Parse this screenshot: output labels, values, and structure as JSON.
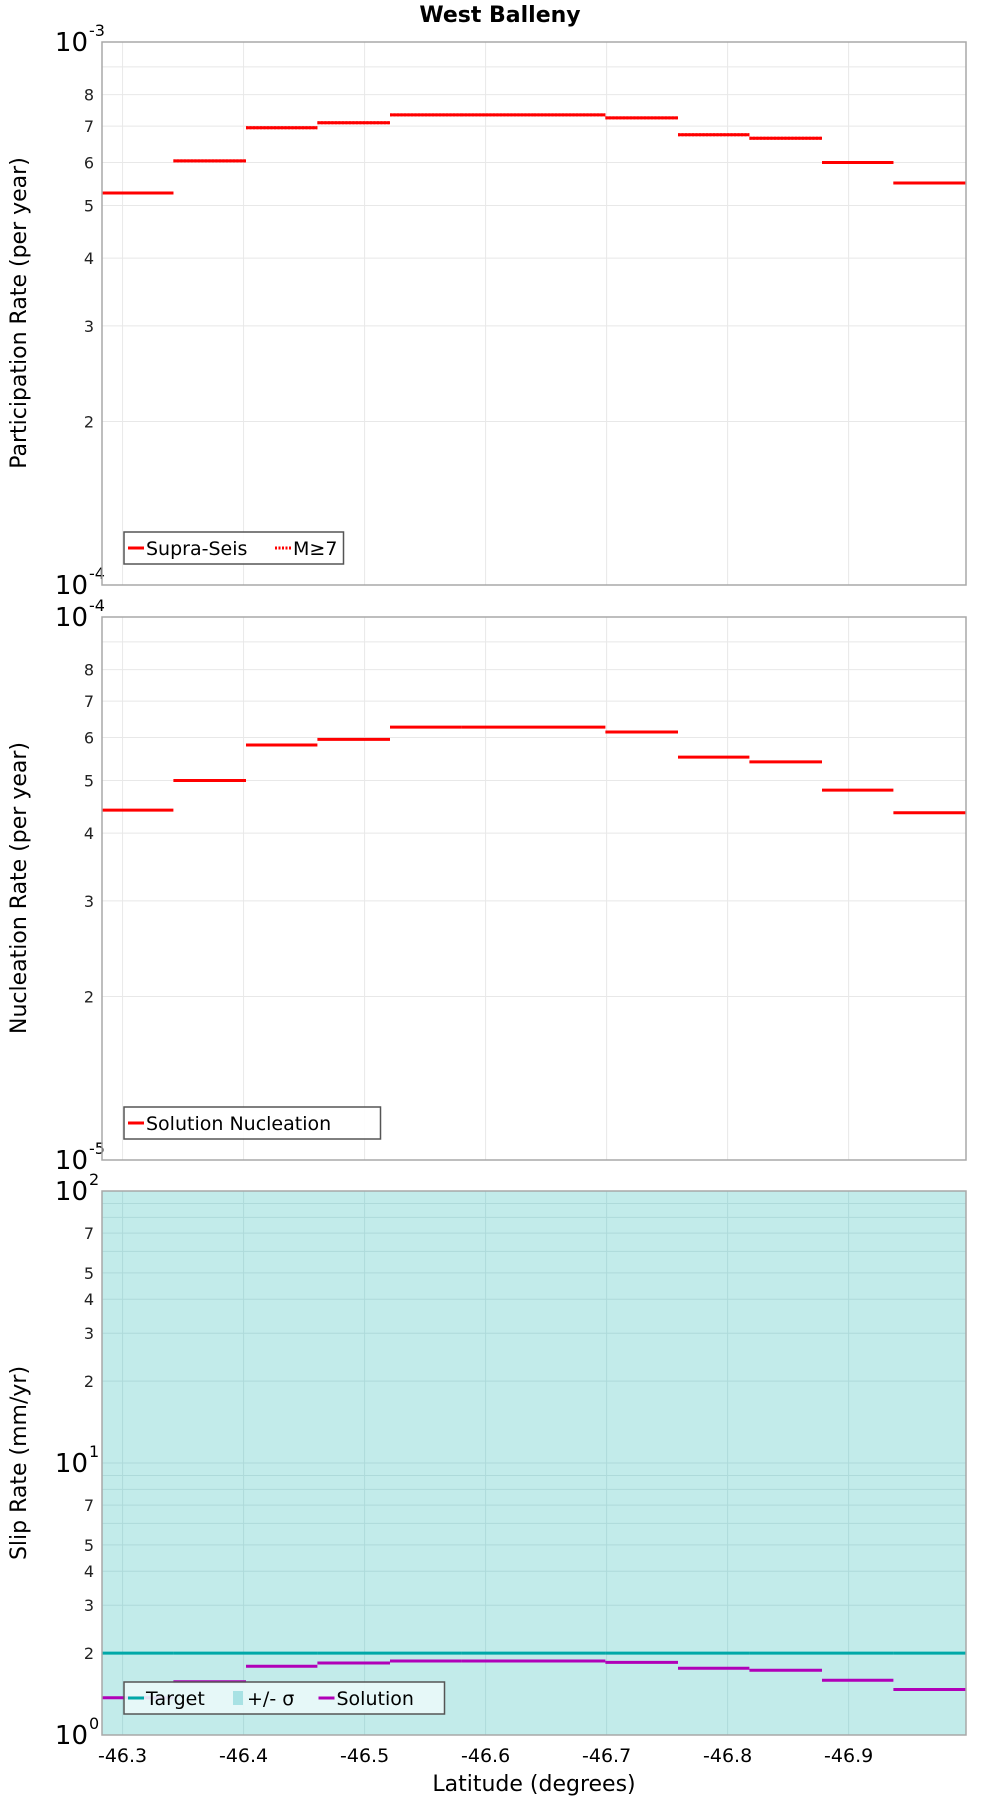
{
  "title": "West Balleny",
  "colors": {
    "solution_red": "#ff0000",
    "target_teal": "#00a8a8",
    "sigma_fill": "#c2ebea",
    "solution_purple": "#b000b8",
    "grid": "#e8e8e8",
    "frame": "#a8a8a8",
    "legend_border": "#555555"
  },
  "chart_data": [
    {
      "type": "line",
      "style": "step",
      "panel": "participation",
      "ylabel": "Participation Rate (per year)",
      "yscale": "log",
      "ylim": [
        0.0001,
        0.001
      ],
      "ytick_labels": [
        "10^-4",
        "2",
        "3",
        "4",
        "5",
        "6",
        "7",
        "8",
        "10^-3"
      ],
      "xlim": [
        -46.283,
        -46.997
      ],
      "grid": true,
      "legend_position": "lower-left",
      "bin_edges": [
        -46.283,
        -46.342,
        -46.402,
        -46.461,
        -46.521,
        -46.58,
        -46.64,
        -46.699,
        -46.759,
        -46.818,
        -46.878,
        -46.937,
        -46.997
      ],
      "series": [
        {
          "name": "Supra-Seis",
          "style": "solid",
          "values": [
            0.000527,
            0.000604,
            0.000695,
            0.00071,
            0.000734,
            0.000734,
            0.000734,
            0.000725,
            0.000675,
            0.000665,
            0.0006,
            0.00055
          ]
        },
        {
          "name": "M≥7",
          "style": "dotted",
          "values": [
            0.000527,
            0.000604,
            0.000695,
            0.00071,
            0.000734,
            0.000734,
            0.000734,
            0.000725,
            0.000675,
            0.000665,
            0.0006,
            0.00055
          ]
        }
      ]
    },
    {
      "type": "line",
      "style": "step",
      "panel": "nucleation",
      "ylabel": "Nucleation Rate (per year)",
      "yscale": "log",
      "ylim": [
        1e-05,
        0.0001
      ],
      "ytick_labels": [
        "10^-5",
        "2",
        "3",
        "4",
        "5",
        "6",
        "7",
        "8",
        "10^-4"
      ],
      "xlim": [
        -46.283,
        -46.997
      ],
      "grid": true,
      "legend_position": "lower-left",
      "bin_edges": [
        -46.283,
        -46.342,
        -46.402,
        -46.461,
        -46.521,
        -46.58,
        -46.64,
        -46.699,
        -46.759,
        -46.818,
        -46.878,
        -46.937,
        -46.997
      ],
      "series": [
        {
          "name": "Solution Nucleation",
          "style": "solid",
          "values": [
            4.41e-05,
            5e-05,
            5.81e-05,
            5.95e-05,
            6.27e-05,
            6.27e-05,
            6.27e-05,
            6.14e-05,
            5.52e-05,
            5.41e-05,
            4.8e-05,
            4.36e-05
          ]
        }
      ]
    },
    {
      "type": "line",
      "style": "step",
      "panel": "slip",
      "ylabel": "Slip Rate (mm/yr)",
      "xlabel": "Latitude (degrees)",
      "yscale": "log",
      "ylim": [
        1,
        100
      ],
      "ytick_labels": [
        "10^0",
        "2",
        "3",
        "4",
        "5",
        "7",
        "10^1",
        "2",
        "3",
        "4",
        "5",
        "7",
        "10^2"
      ],
      "xlim": [
        -46.283,
        -46.997
      ],
      "xticks": [
        -46.3,
        -46.4,
        -46.5,
        -46.6,
        -46.7,
        -46.8,
        -46.9
      ],
      "xtick_labels": [
        "-46.3",
        "-46.4",
        "-46.5",
        "-46.6",
        "-46.7",
        "-46.8",
        "-46.9"
      ],
      "grid": true,
      "legend_position": "lower-left",
      "bin_edges": [
        -46.283,
        -46.342,
        -46.402,
        -46.461,
        -46.521,
        -46.58,
        -46.64,
        -46.699,
        -46.759,
        -46.818,
        -46.878,
        -46.937,
        -46.997
      ],
      "series": [
        {
          "name": "Target",
          "style": "solid",
          "values": [
            2,
            2,
            2,
            2,
            2,
            2,
            2,
            2,
            2,
            2,
            2,
            2
          ]
        },
        {
          "name": "+/- σ",
          "style": "fill",
          "lower": [
            1,
            1,
            1,
            1,
            1,
            1,
            1,
            1,
            1,
            1,
            1,
            1
          ],
          "upper": [
            100,
            100,
            100,
            100,
            100,
            100,
            100,
            100,
            100,
            100,
            100,
            100
          ]
        },
        {
          "name": "Solution",
          "style": "solid",
          "values": [
            1.37,
            1.57,
            1.79,
            1.84,
            1.87,
            1.87,
            1.87,
            1.85,
            1.76,
            1.73,
            1.59,
            1.47
          ]
        }
      ]
    }
  ],
  "legends": {
    "participation": [
      "Supra-Seis",
      "M≥7"
    ],
    "nucleation": [
      "Solution Nucleation"
    ],
    "slip": [
      "Target",
      "+/- σ",
      "Solution"
    ]
  }
}
